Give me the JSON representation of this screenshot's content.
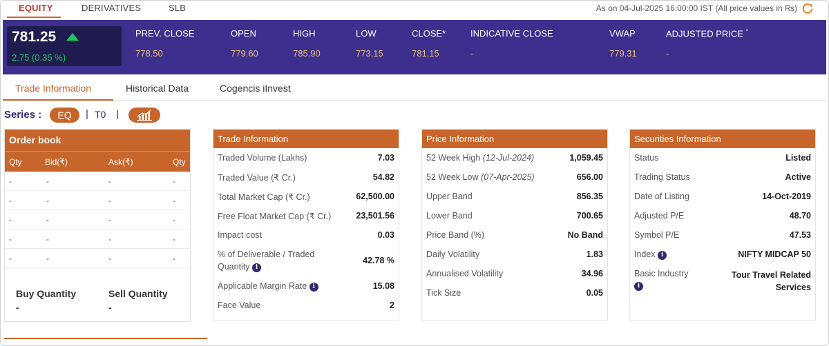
{
  "top_tabs": [
    {
      "label": "EQUITY"
    },
    {
      "label": "DERIVATIVES"
    },
    {
      "label": "SLB"
    }
  ],
  "as_on": "As on 04-Jul-2025 16:00:00 IST (All price values in ₨)",
  "quote": {
    "ltp": "781.25",
    "change": "2.75 (0.35 %)",
    "stats": [
      {
        "label": "PREV. CLOSE",
        "value": "778.50"
      },
      {
        "label": "OPEN",
        "value": "779.60"
      },
      {
        "label": "HIGH",
        "value": "785.90"
      },
      {
        "label": "LOW",
        "value": "773.15"
      },
      {
        "label": "CLOSE*",
        "value": "781.15"
      },
      {
        "label": "INDICATIVE CLOSE",
        "value": "-"
      },
      {
        "label": "VWAP",
        "value": "779.31"
      },
      {
        "label": "ADJUSTED PRICE",
        "value": "-"
      }
    ],
    "adjusted_mark": "*"
  },
  "sub_tabs": [
    {
      "label": "Trade Information"
    },
    {
      "label": "Historical Data"
    },
    {
      "label": "Cogencis iInvest"
    }
  ],
  "series": {
    "label": "Series :",
    "eq": "EQ",
    "sep": "|",
    "t0": "T0"
  },
  "order_book": {
    "title": "Order book",
    "columns": [
      "Qty",
      "Bid(₹)",
      "Ask(₹)",
      "Qty"
    ],
    "rows": [
      [
        "-",
        "-",
        "-",
        "-"
      ],
      [
        "-",
        "-",
        "-",
        "-"
      ],
      [
        "-",
        "-",
        "-",
        "-"
      ],
      [
        "-",
        "-",
        "-",
        "-"
      ],
      [
        "-",
        "-",
        "-",
        "-"
      ]
    ],
    "buy_label": "Buy Quantity",
    "buy_value": "-",
    "sell_label": "Sell Quantity",
    "sell_value": "-"
  },
  "trade_info": {
    "title": "Trade Information",
    "rows": [
      {
        "key": "Traded Volume (Lakhs)",
        "value": "7.03"
      },
      {
        "key": "Traded Value (₹ Cr.)",
        "value": "54.82"
      },
      {
        "key": "Total Market Cap (₹ Cr.)",
        "value": "62,500.00"
      },
      {
        "key": "Free Float Market Cap (₹ Cr.)",
        "value": "23,501.56"
      },
      {
        "key": "Impact cost",
        "value": "0.03"
      },
      {
        "key": "% of Deliverable / Traded",
        "key2": "Quantity",
        "value": "42.78 %"
      },
      {
        "key": "Applicable Margin Rate",
        "value": "15.08"
      },
      {
        "key": "Face Value",
        "value": "2"
      }
    ]
  },
  "price_info": {
    "title": "Price Information",
    "rows": [
      {
        "key": "52 Week High",
        "note": "(12-Jul-2024)",
        "value": "1,059.45"
      },
      {
        "key": "52 Week Low",
        "note": "(07-Apr-2025)",
        "value": "656.00"
      },
      {
        "key": "Upper Band",
        "value": "856.35"
      },
      {
        "key": "Lower Band",
        "value": "700.65"
      },
      {
        "key": "Price Band (%)",
        "value": "No Band"
      },
      {
        "key": "Daily Volatility",
        "value": "1.83"
      },
      {
        "key": "Annualised Volatility",
        "value": "34.96"
      },
      {
        "key": "Tick Size",
        "value": "0.05"
      }
    ]
  },
  "securities_info": {
    "title": "Securities Information",
    "rows": [
      {
        "key": "Status",
        "value": "Listed"
      },
      {
        "key": "Trading Status",
        "value": "Active"
      },
      {
        "key": "Date of Listing",
        "value": "14-Oct-2019"
      },
      {
        "key": "Adjusted P/E",
        "value": "48.70"
      },
      {
        "key": "Symbol P/E",
        "value": "47.53"
      },
      {
        "key": "Index",
        "value": "NIFTY MIDCAP 50"
      },
      {
        "key": "Basic Industry",
        "value": "Tour Travel Related",
        "value2": "Services"
      }
    ]
  },
  "colors": {
    "accent": "#c8652a",
    "band": "#3d2f8d",
    "ltp_box": "#1f1c4f",
    "positive": "#22c55e",
    "stat_value": "#f1c27d"
  }
}
